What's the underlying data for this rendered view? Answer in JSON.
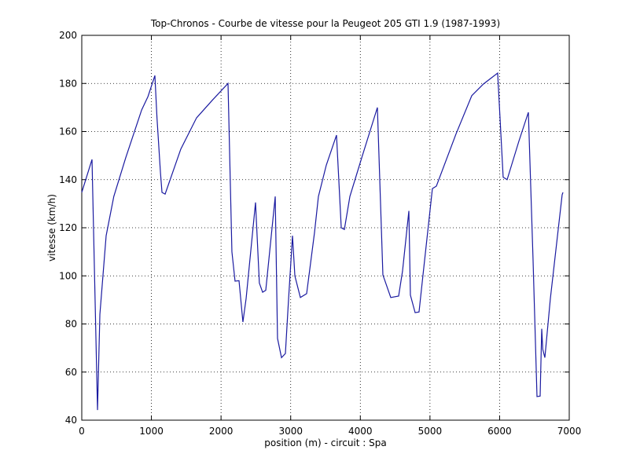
{
  "chart_data": {
    "type": "line",
    "title": "Top-Chronos - Courbe de vitesse pour la Peugeot 205 GTI 1.9 (1987-1993)",
    "xlabel": "position (m) - circuit : Spa",
    "ylabel": "vitesse (km/h)",
    "color": "#1a1aa0",
    "grid": true,
    "xlim": [
      0,
      7000
    ],
    "xticks": [
      0,
      1000,
      2000,
      3000,
      4000,
      5000,
      6000,
      7000
    ],
    "ylim": [
      40,
      200
    ],
    "yticks": [
      40,
      60,
      80,
      100,
      120,
      140,
      160,
      180,
      200
    ],
    "x": [
      0,
      147,
      226,
      260,
      350,
      460,
      630,
      860,
      950,
      1050,
      1080,
      1130,
      1152,
      1197,
      1422,
      1648,
      1874,
      2100,
      2156,
      2201,
      2258,
      2314,
      2360,
      2495,
      2550,
      2597,
      2642,
      2778,
      2811,
      2868,
      2924,
      2970,
      3026,
      3060,
      3139,
      3229,
      3342,
      3398,
      3511,
      3658,
      3726,
      3771,
      3850,
      4019,
      4245,
      4324,
      4437,
      4550,
      4606,
      4697,
      4719,
      4787,
      4843,
      4900,
      5035,
      5092,
      5374,
      5600,
      5769,
      5972,
      6051,
      6108,
      6277,
      6413,
      6480,
      6537,
      6582,
      6605,
      6620,
      6650,
      6729,
      6898,
      6910
    ],
    "values": [
      134.7,
      148.4,
      44.2,
      84,
      116.7,
      133,
      149,
      169,
      174.5,
      183.3,
      165.7,
      142.9,
      134.7,
      134,
      152.7,
      165.7,
      173,
      180,
      110,
      97.8,
      98,
      80.8,
      90.6,
      130.5,
      97,
      93.2,
      94,
      133,
      74,
      66,
      67.7,
      90.6,
      116.7,
      100,
      91,
      92.6,
      118,
      133,
      146,
      158.5,
      120,
      119.3,
      133,
      149,
      170,
      100.4,
      91,
      91.6,
      102,
      127,
      92,
      84.7,
      85,
      100.4,
      136.3,
      137.3,
      159,
      174.9,
      179.8,
      184.3,
      141,
      140,
      156,
      168,
      107,
      49.8,
      50,
      78,
      69.4,
      66,
      90.6,
      133.7,
      134.7
    ]
  }
}
